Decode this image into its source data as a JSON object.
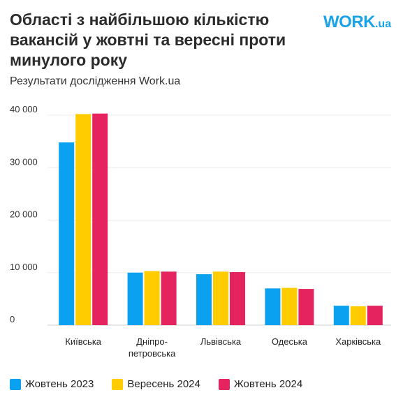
{
  "header": {
    "title": "Області з найбільшою кількістю вакансій у жовтні та вересні проти минулого року",
    "subtitle": "Результати дослідження Work.ua",
    "logo_main": "WORK",
    "logo_suffix": ".ua"
  },
  "chart_data": {
    "type": "bar",
    "title": "Області з найбільшою кількістю вакансій у жовтні та вересні проти минулого року",
    "subtitle": "Результати дослідження Work.ua",
    "categories": [
      [
        "Київська"
      ],
      [
        "Дніпро-",
        "петровська"
      ],
      [
        "Львівська"
      ],
      [
        "Одеська"
      ],
      [
        "Харківська"
      ]
    ],
    "series": [
      {
        "name": "Жовтень 2023",
        "color": "#0aa1f0",
        "values": [
          34800,
          10000,
          9700,
          7000,
          3700
        ]
      },
      {
        "name": "Вересень 2024",
        "color": "#ffcc00",
        "values": [
          40200,
          10300,
          10200,
          7100,
          3600
        ]
      },
      {
        "name": "Жовтень 2024",
        "color": "#e5245f",
        "values": [
          40300,
          10200,
          10100,
          6900,
          3700
        ]
      }
    ],
    "yticks": [
      "0",
      "10 000",
      "20 000",
      "30 000",
      "40 000"
    ],
    "ytick_values": [
      0,
      10000,
      20000,
      30000,
      40000
    ],
    "ylim": [
      0,
      40000
    ],
    "grid": true,
    "legend_position": "bottom-left"
  }
}
